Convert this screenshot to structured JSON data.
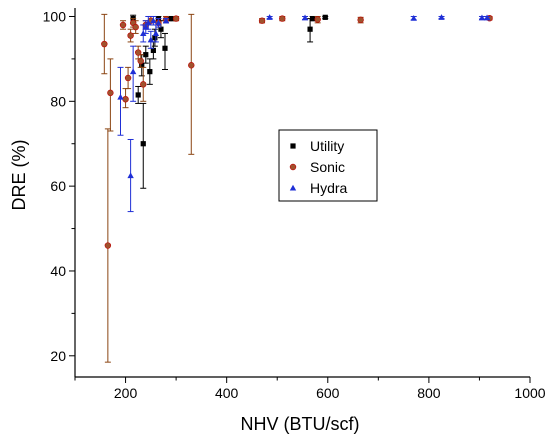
{
  "chart_data": {
    "type": "scatter",
    "title": "",
    "xlabel": "NHV (BTU/scf)",
    "ylabel": "DRE (%)",
    "xlim": [
      100,
      1000
    ],
    "ylim": [
      15,
      102
    ],
    "x_ticks": [
      "200",
      "400",
      "600",
      "800",
      "1000"
    ],
    "y_ticks": [
      "20",
      "40",
      "60",
      "80",
      "100"
    ],
    "grid": false,
    "legend_position": "center-right",
    "series": [
      {
        "name": "Utility",
        "color": "#000000",
        "marker": "square",
        "points": [
          {
            "x": 215,
            "y": 99.5,
            "lo": 98.5,
            "hi": 100.3
          },
          {
            "x": 225,
            "y": 81.5,
            "lo": 79.5,
            "hi": 83.5
          },
          {
            "x": 232,
            "y": 88.5,
            "lo": 86,
            "hi": 91
          },
          {
            "x": 235,
            "y": 70,
            "lo": 59.5,
            "hi": 79.5
          },
          {
            "x": 240,
            "y": 91,
            "lo": 89,
            "hi": 93
          },
          {
            "x": 248,
            "y": 87,
            "lo": 84,
            "hi": 90
          },
          {
            "x": 255,
            "y": 92,
            "lo": 90,
            "hi": 94
          },
          {
            "x": 258,
            "y": 95,
            "lo": 93,
            "hi": 97
          },
          {
            "x": 265,
            "y": 99.5,
            "lo": 99,
            "hi": 100
          },
          {
            "x": 270,
            "y": 97,
            "lo": 95,
            "hi": 99
          },
          {
            "x": 278,
            "y": 92.5,
            "lo": 87.5,
            "hi": 96
          },
          {
            "x": 285,
            "y": 99.5,
            "lo": 99,
            "hi": 100
          },
          {
            "x": 295,
            "y": 99.5,
            "lo": 99,
            "hi": 100
          },
          {
            "x": 565,
            "y": 97,
            "lo": 94,
            "hi": 99.5
          },
          {
            "x": 570,
            "y": 99.5,
            "lo": 99,
            "hi": 100
          },
          {
            "x": 595,
            "y": 99.8,
            "lo": 99.5,
            "hi": 100
          }
        ]
      },
      {
        "name": "Sonic",
        "color": "#a0522d",
        "marker": "circle",
        "points": [
          {
            "x": 158,
            "y": 93.5,
            "lo": 86.5,
            "hi": 100.5
          },
          {
            "x": 165,
            "y": 46,
            "lo": 18.5,
            "hi": 73.5
          },
          {
            "x": 170,
            "y": 82,
            "lo": 73,
            "hi": 90
          },
          {
            "x": 195,
            "y": 98,
            "lo": 97,
            "hi": 99
          },
          {
            "x": 200,
            "y": 80.5,
            "lo": 78.5,
            "hi": 83
          },
          {
            "x": 205,
            "y": 85.5,
            "lo": 83,
            "hi": 88
          },
          {
            "x": 210,
            "y": 95.5,
            "lo": 94,
            "hi": 97
          },
          {
            "x": 215,
            "y": 98.5,
            "lo": 97.5,
            "hi": 99.5
          },
          {
            "x": 220,
            "y": 97.5,
            "lo": 96,
            "hi": 99
          },
          {
            "x": 225,
            "y": 91.5,
            "lo": 90,
            "hi": 93
          },
          {
            "x": 230,
            "y": 89.5,
            "lo": 88,
            "hi": 91
          },
          {
            "x": 235,
            "y": 84,
            "lo": 80,
            "hi": 88
          },
          {
            "x": 240,
            "y": 98,
            "lo": 97,
            "hi": 99
          },
          {
            "x": 250,
            "y": 99,
            "lo": 98,
            "hi": 100
          },
          {
            "x": 265,
            "y": 98.5,
            "lo": 97.5,
            "hi": 99.5
          },
          {
            "x": 280,
            "y": 99.3,
            "lo": 98.5,
            "hi": 100
          },
          {
            "x": 300,
            "y": 99.5,
            "lo": 99,
            "hi": 100
          },
          {
            "x": 330,
            "y": 88.5,
            "lo": 67.5,
            "hi": 100.5
          },
          {
            "x": 470,
            "y": 99,
            "lo": 98.5,
            "hi": 99.5
          },
          {
            "x": 510,
            "y": 99.5,
            "lo": 99,
            "hi": 100
          },
          {
            "x": 580,
            "y": 99.3,
            "lo": 98.5,
            "hi": 100
          },
          {
            "x": 665,
            "y": 99.2,
            "lo": 98.5,
            "hi": 99.8
          },
          {
            "x": 920,
            "y": 99.6,
            "lo": 99.2,
            "hi": 100
          }
        ]
      },
      {
        "name": "Hydra",
        "color": "#1f2fd6",
        "marker": "triangle",
        "points": [
          {
            "x": 190,
            "y": 81,
            "lo": 72,
            "hi": 88
          },
          {
            "x": 210,
            "y": 62.5,
            "lo": 54,
            "hi": 71
          },
          {
            "x": 215,
            "y": 87,
            "lo": 80,
            "hi": 93
          },
          {
            "x": 235,
            "y": 96,
            "lo": 94,
            "hi": 98
          },
          {
            "x": 240,
            "y": 97.5,
            "lo": 96,
            "hi": 99
          },
          {
            "x": 245,
            "y": 98.5,
            "lo": 97,
            "hi": 100
          },
          {
            "x": 250,
            "y": 94.5,
            "lo": 92.5,
            "hi": 96.5
          },
          {
            "x": 255,
            "y": 99,
            "lo": 98,
            "hi": 100
          },
          {
            "x": 260,
            "y": 96,
            "lo": 94,
            "hi": 98
          },
          {
            "x": 265,
            "y": 98.5,
            "lo": 97.5,
            "hi": 99.5
          },
          {
            "x": 280,
            "y": 99,
            "lo": 98.5,
            "hi": 99.5
          },
          {
            "x": 485,
            "y": 99.8,
            "lo": 99.5,
            "hi": 100
          },
          {
            "x": 555,
            "y": 99.7,
            "lo": 99.3,
            "hi": 100
          },
          {
            "x": 770,
            "y": 99.6,
            "lo": 99.2,
            "hi": 100
          },
          {
            "x": 825,
            "y": 99.8,
            "lo": 99.5,
            "hi": 100
          },
          {
            "x": 905,
            "y": 99.7,
            "lo": 99.4,
            "hi": 100
          },
          {
            "x": 915,
            "y": 99.7,
            "lo": 99.4,
            "hi": 100
          }
        ]
      }
    ]
  }
}
